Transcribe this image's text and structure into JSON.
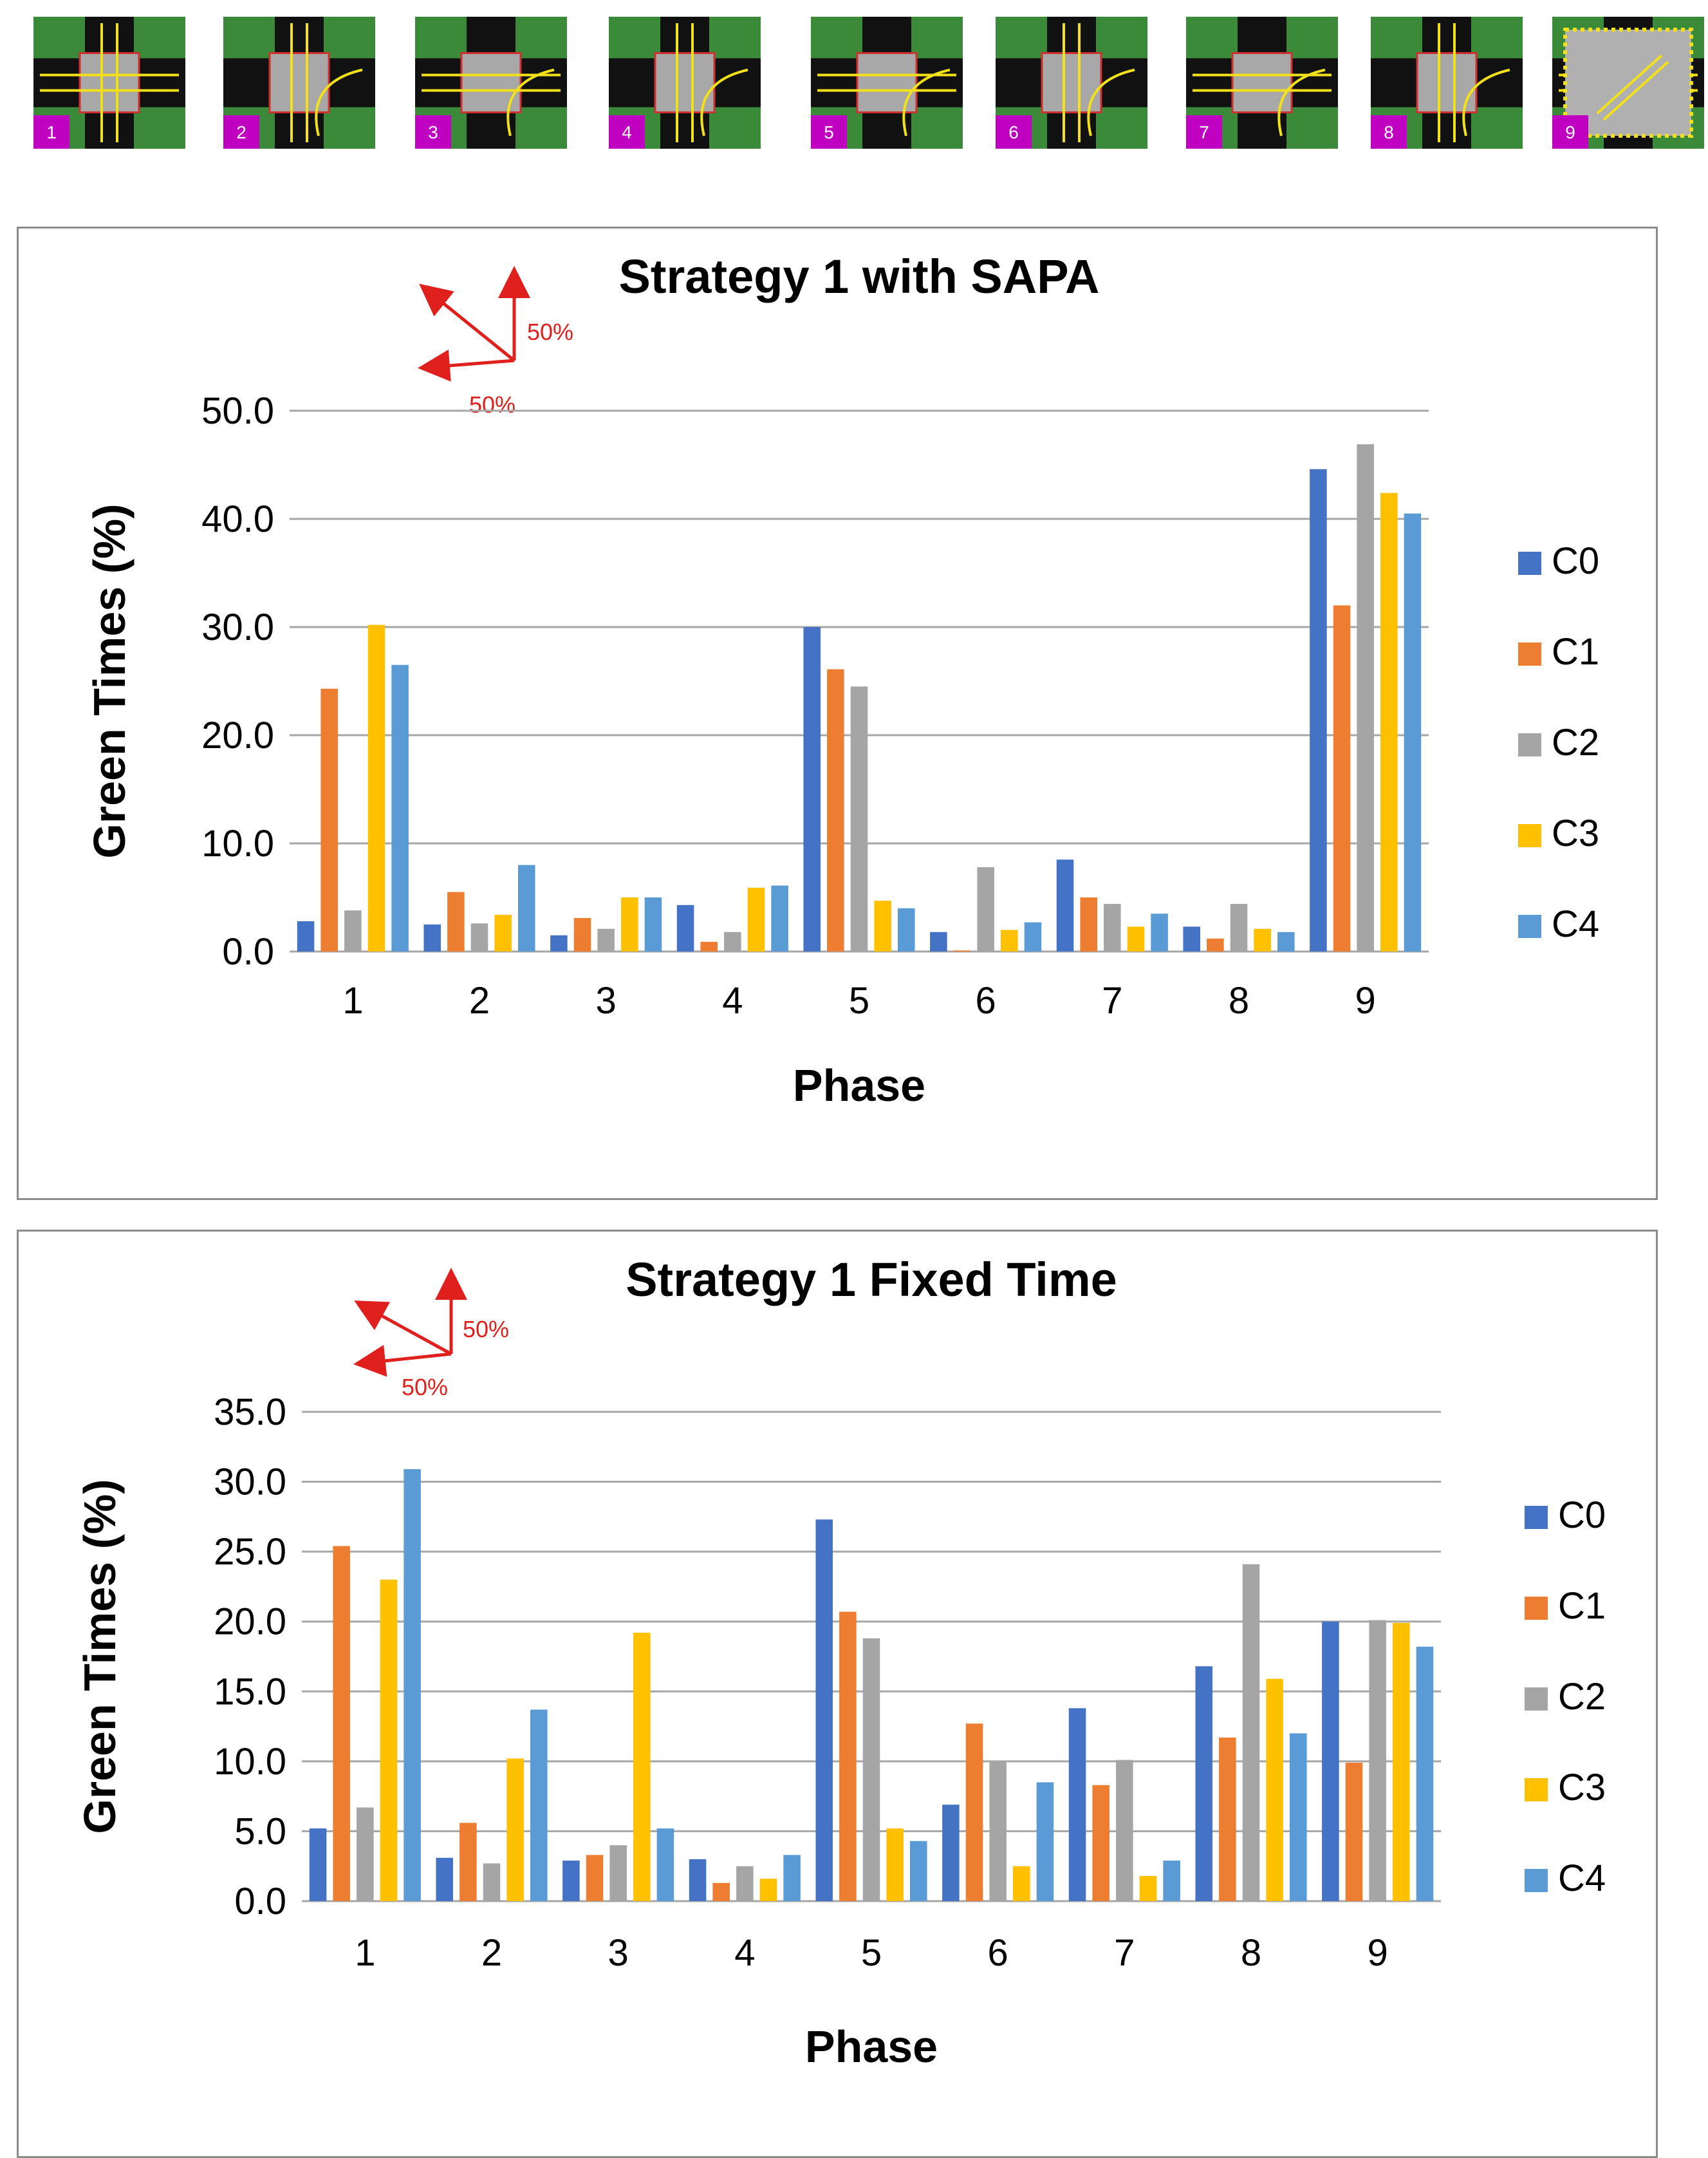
{
  "colors": {
    "C0": "#4472c4",
    "C1": "#ed7d31",
    "C2": "#a5a5a5",
    "C3": "#ffc000",
    "C4": "#5b9bd5",
    "grass": "#3a8a3a",
    "road": "#111111",
    "box": "#a8a8a8",
    "badge": "#c000c0",
    "arrow_yellow": "#f2e01a",
    "annotation_red": "#e0201d"
  },
  "phase_diagrams": [
    {
      "label": "1"
    },
    {
      "label": "2"
    },
    {
      "label": "3"
    },
    {
      "label": "4"
    },
    {
      "label": "5"
    },
    {
      "label": "6"
    },
    {
      "label": "7"
    },
    {
      "label": "8"
    },
    {
      "label": "9"
    }
  ],
  "chart_data": [
    {
      "type": "bar",
      "title": "Strategy 1 with SAPA",
      "xlabel": "Phase",
      "ylabel": "Green Times (%)",
      "ylim": [
        0,
        50
      ],
      "ytick_step": 10,
      "ytick_labels": [
        "0.0",
        "10.0",
        "20.0",
        "30.0",
        "40.0",
        "50.0"
      ],
      "categories": [
        "1",
        "2",
        "3",
        "4",
        "5",
        "6",
        "7",
        "8",
        "9"
      ],
      "annotation": {
        "label_diag": "50%",
        "label_horiz": "50%"
      },
      "legend_position": "right",
      "series": [
        {
          "name": "C0",
          "values": [
            2.8,
            2.5,
            1.5,
            4.3,
            30.0,
            1.8,
            8.5,
            2.3,
            44.6
          ]
        },
        {
          "name": "C1",
          "values": [
            24.3,
            5.5,
            3.1,
            0.9,
            26.1,
            0.1,
            5.0,
            1.2,
            32.0
          ]
        },
        {
          "name": "C2",
          "values": [
            3.8,
            2.6,
            2.1,
            1.8,
            24.5,
            7.8,
            4.4,
            4.4,
            46.9
          ]
        },
        {
          "name": "C3",
          "values": [
            30.2,
            3.4,
            5.0,
            5.9,
            4.7,
            2.0,
            2.3,
            2.1,
            42.4
          ]
        },
        {
          "name": "C4",
          "values": [
            26.5,
            8.0,
            5.0,
            6.1,
            4.0,
            2.7,
            3.5,
            1.8,
            40.5
          ]
        }
      ]
    },
    {
      "type": "bar",
      "title": "Strategy 1 Fixed Time",
      "xlabel": "Phase",
      "ylabel": "Green Times (%)",
      "ylim": [
        0,
        35
      ],
      "ytick_step": 5,
      "ytick_labels": [
        "0.0",
        "5.0",
        "10.0",
        "15.0",
        "20.0",
        "25.0",
        "30.0",
        "35.0"
      ],
      "categories": [
        "1",
        "2",
        "3",
        "4",
        "5",
        "6",
        "7",
        "8",
        "9"
      ],
      "annotation": {
        "label_diag": "50%",
        "label_horiz": "50%"
      },
      "legend_position": "right",
      "series": [
        {
          "name": "C0",
          "values": [
            5.2,
            3.1,
            2.9,
            3.0,
            27.3,
            6.9,
            13.8,
            16.8,
            20.0
          ]
        },
        {
          "name": "C1",
          "values": [
            25.4,
            5.6,
            3.3,
            1.3,
            20.7,
            12.7,
            8.3,
            11.7,
            9.9
          ]
        },
        {
          "name": "C2",
          "values": [
            6.7,
            2.7,
            4.0,
            2.5,
            18.8,
            10.0,
            10.1,
            24.1,
            20.1
          ]
        },
        {
          "name": "C3",
          "values": [
            23.0,
            10.2,
            19.2,
            1.6,
            5.2,
            2.5,
            1.8,
            15.9,
            19.9
          ]
        },
        {
          "name": "C4",
          "values": [
            30.9,
            13.7,
            5.2,
            3.3,
            4.3,
            8.5,
            2.9,
            12.0,
            18.2
          ]
        }
      ]
    }
  ]
}
